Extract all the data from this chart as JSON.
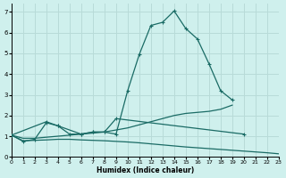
{
  "xlabel": "Humidex (Indice chaleur)",
  "background_color": "#cff0ed",
  "grid_color": "#b8dbd8",
  "line_color": "#1a6b65",
  "xlim": [
    0,
    23
  ],
  "ylim": [
    0,
    7.4
  ],
  "yticks": [
    0,
    1,
    2,
    3,
    4,
    5,
    6,
    7
  ],
  "xticks": [
    0,
    1,
    2,
    3,
    4,
    5,
    6,
    7,
    8,
    9,
    10,
    11,
    12,
    13,
    14,
    15,
    16,
    17,
    18,
    19,
    20,
    21,
    22,
    23
  ],
  "curve_peak": {
    "x": [
      0,
      1,
      2,
      3,
      4,
      5,
      6,
      7,
      8,
      9,
      10,
      11,
      12,
      13,
      14,
      15,
      16,
      17,
      18,
      19
    ],
    "y": [
      1.05,
      0.75,
      0.85,
      1.65,
      1.5,
      1.1,
      1.1,
      1.2,
      1.2,
      1.1,
      3.2,
      4.95,
      6.35,
      6.5,
      7.05,
      6.2,
      5.7,
      4.5,
      3.2,
      2.75
    ]
  },
  "curve_rising": {
    "x": [
      0,
      1,
      2,
      3,
      4,
      5,
      6,
      7,
      8,
      9,
      10,
      11,
      12,
      13,
      14,
      15,
      16,
      17,
      18,
      19
    ],
    "y": [
      1.05,
      0.9,
      0.9,
      0.95,
      1.0,
      1.05,
      1.1,
      1.15,
      1.2,
      1.3,
      1.4,
      1.55,
      1.7,
      1.85,
      2.0,
      2.1,
      2.15,
      2.2,
      2.3,
      2.5
    ]
  },
  "curve_decl": {
    "x": [
      0,
      1,
      2,
      3,
      4,
      5,
      6,
      7,
      8,
      9,
      10,
      11,
      12,
      13,
      14,
      15,
      16,
      17,
      18,
      19,
      20,
      21,
      22,
      23
    ],
    "y": [
      1.05,
      0.78,
      0.8,
      0.82,
      0.85,
      0.85,
      0.82,
      0.8,
      0.78,
      0.75,
      0.72,
      0.68,
      0.63,
      0.58,
      0.53,
      0.48,
      0.44,
      0.4,
      0.36,
      0.32,
      0.28,
      0.24,
      0.2,
      0.15
    ]
  },
  "curve_sparse_x": [
    0,
    3,
    4,
    6,
    7,
    8,
    9,
    20
  ],
  "curve_sparse_y": [
    1.05,
    1.7,
    1.5,
    1.1,
    1.2,
    1.2,
    1.85,
    1.1
  ]
}
